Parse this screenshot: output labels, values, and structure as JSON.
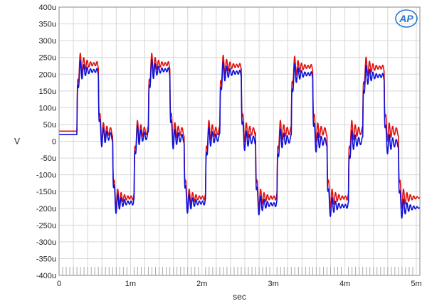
{
  "chart_data": {
    "type": "line",
    "xlabel": "sec",
    "ylabel": "V",
    "xlim": [
      0,
      0.00505
    ],
    "ylim": [
      -0.0004,
      0.0004
    ],
    "x_ticks": [
      0,
      0.001,
      0.002,
      0.003,
      0.004,
      0.005
    ],
    "x_tick_labels": [
      "0",
      "1m",
      "2m",
      "3m",
      "4m",
      "5m"
    ],
    "y_ticks": [
      0.0004,
      0.00035,
      0.0003,
      0.00025,
      0.0002,
      0.00015,
      0.0001,
      5e-05,
      0,
      -5e-05,
      -0.0001,
      -0.00015,
      -0.0002,
      -0.00025,
      -0.0003,
      -0.00035,
      -0.0004
    ],
    "y_tick_labels": [
      "400u",
      "350u",
      "300u",
      "250u",
      "200u",
      "150u",
      "100u",
      "50u",
      "0",
      "-50u",
      "-100u",
      "-150u",
      "-200u",
      "-250u",
      "-300u",
      "-350u",
      "-400u"
    ],
    "grid": true,
    "logo_text": "AP",
    "series": [
      {
        "color": "#e01010",
        "levels": [
          {
            "start": 0,
            "end": 0.00025,
            "value": 3e-05
          },
          {
            "start": 0.00025,
            "end": 0.00055,
            "value": 0.00023
          },
          {
            "start": 0.00055,
            "end": 0.00075,
            "value": 3e-05
          },
          {
            "start": 0.00075,
            "end": 0.00105,
            "value": -0.000168
          },
          {
            "start": 0.00105,
            "end": 0.00125,
            "value": 3e-05
          },
          {
            "start": 0.00125,
            "end": 0.00155,
            "value": 0.00023
          },
          {
            "start": 0.00155,
            "end": 0.00175,
            "value": 3e-05
          },
          {
            "start": 0.00175,
            "end": 0.00205,
            "value": -0.000168
          },
          {
            "start": 0.00205,
            "end": 0.00225,
            "value": 3e-05
          },
          {
            "start": 0.00225,
            "end": 0.00255,
            "value": 0.000225
          },
          {
            "start": 0.00255,
            "end": 0.00275,
            "value": 3e-05
          },
          {
            "start": 0.00275,
            "end": 0.00305,
            "value": -0.000168
          },
          {
            "start": 0.00305,
            "end": 0.00325,
            "value": 3e-05
          },
          {
            "start": 0.00325,
            "end": 0.00355,
            "value": 0.000222
          },
          {
            "start": 0.00355,
            "end": 0.00375,
            "value": 3e-05
          },
          {
            "start": 0.00375,
            "end": 0.00405,
            "value": -0.000168
          },
          {
            "start": 0.00405,
            "end": 0.00425,
            "value": 3e-05
          },
          {
            "start": 0.00425,
            "end": 0.00455,
            "value": 0.00022
          },
          {
            "start": 0.00455,
            "end": 0.00475,
            "value": 3e-05
          },
          {
            "start": 0.00475,
            "end": 0.00505,
            "value": -0.000168
          }
        ]
      },
      {
        "color": "#1010d8",
        "levels": [
          {
            "start": 0,
            "end": 0.00025,
            "value": 2e-05
          },
          {
            "start": 0.00025,
            "end": 0.00055,
            "value": 0.00021
          },
          {
            "start": 0.00055,
            "end": 0.00075,
            "value": 1.5e-05
          },
          {
            "start": 0.00075,
            "end": 0.00105,
            "value": -0.000183
          },
          {
            "start": 0.00105,
            "end": 0.00125,
            "value": 1.5e-05
          },
          {
            "start": 0.00125,
            "end": 0.00155,
            "value": 0.000212
          },
          {
            "start": 0.00155,
            "end": 0.00175,
            "value": 1e-05
          },
          {
            "start": 0.00175,
            "end": 0.00205,
            "value": -0.000183
          },
          {
            "start": 0.00205,
            "end": 0.00225,
            "value": 1e-05
          },
          {
            "start": 0.00225,
            "end": 0.00255,
            "value": 0.000205
          },
          {
            "start": 0.00255,
            "end": 0.00275,
            "value": 5e-06
          },
          {
            "start": 0.00275,
            "end": 0.00305,
            "value": -0.000188
          },
          {
            "start": 0.00305,
            "end": 0.00325,
            "value": 5e-06
          },
          {
            "start": 0.00325,
            "end": 0.00355,
            "value": 0.0002
          },
          {
            "start": 0.00355,
            "end": 0.00375,
            "value": 0
          },
          {
            "start": 0.00375,
            "end": 0.00405,
            "value": -0.000193
          },
          {
            "start": 0.00405,
            "end": 0.00425,
            "value": 0
          },
          {
            "start": 0.00425,
            "end": 0.00455,
            "value": 0.000195
          },
          {
            "start": 0.00455,
            "end": 0.00475,
            "value": -5e-06
          },
          {
            "start": 0.00475,
            "end": 0.00505,
            "value": -0.000198
          }
        ]
      }
    ]
  }
}
